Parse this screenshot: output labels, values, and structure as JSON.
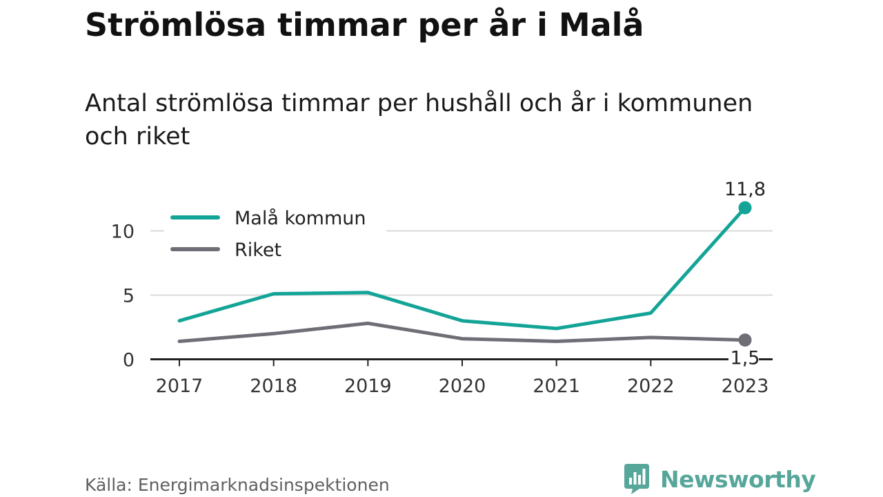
{
  "title": "Strömlösa timmar per år i Malå",
  "subtitle": "Antal strömlösa timmar per hushåll och år i kommunen och riket",
  "source": "Källa: Energimarknadsinspektionen",
  "brand": {
    "name": "Newsworthy",
    "icon": "newsworthy-logo-icon",
    "color": "#57a69a"
  },
  "chart_data": {
    "type": "line",
    "x": [
      "2017",
      "2018",
      "2019",
      "2020",
      "2021",
      "2022",
      "2023"
    ],
    "series": [
      {
        "name": "Malå kommun",
        "color": "#14a497",
        "values": [
          3.0,
          5.1,
          5.2,
          3.0,
          2.4,
          3.6,
          11.8
        ],
        "end_label": "11,8"
      },
      {
        "name": "Riket",
        "color": "#6f6e76",
        "values": [
          1.4,
          2.0,
          2.8,
          1.6,
          1.4,
          1.7,
          1.5
        ],
        "end_label": "1,5"
      }
    ],
    "y_ticks": [
      0,
      5,
      10
    ],
    "y_tick_labels": [
      "0",
      "5",
      "10"
    ],
    "ylim": [
      0,
      12
    ],
    "grid": true,
    "legend_position": "top-left"
  }
}
